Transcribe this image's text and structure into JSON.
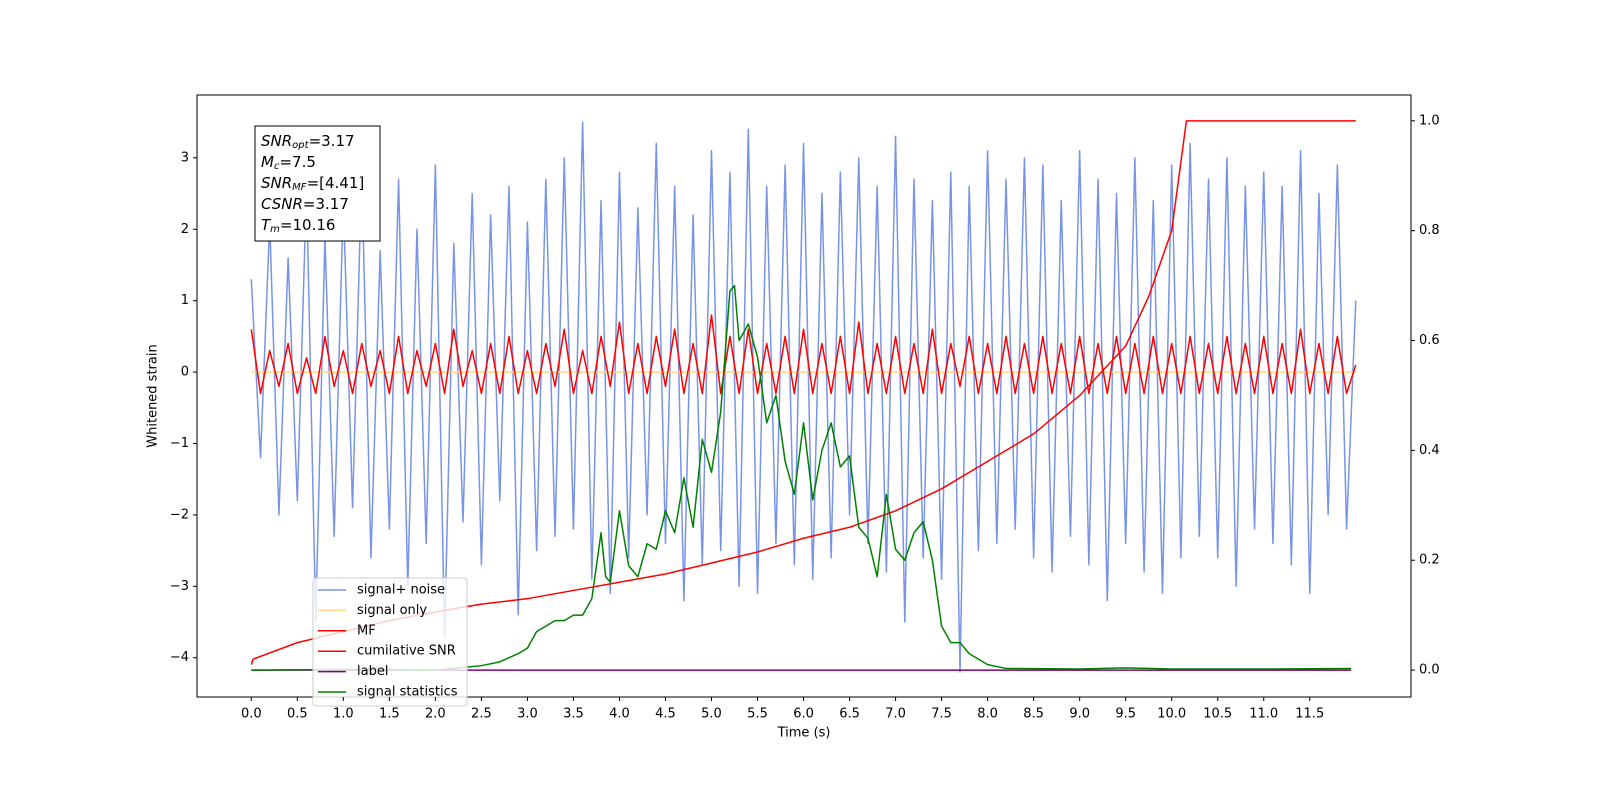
{
  "chart_data": {
    "type": "line",
    "xlabel": "Time (s)",
    "ylabel": "Whitened strain",
    "xlim": [
      -0.59,
      12.6
    ],
    "ylim": [
      -4.55,
      3.88
    ],
    "y2lim": [
      -0.049,
      1.047
    ],
    "xticks": [
      {
        "value": 0,
        "label": "0.0"
      },
      {
        "value": 0.5,
        "label": "0.5"
      },
      {
        "value": 1,
        "label": "1.0"
      },
      {
        "value": 1.5,
        "label": "1.5"
      },
      {
        "value": 2,
        "label": "2.0"
      },
      {
        "value": 2.5,
        "label": "2.5"
      },
      {
        "value": 3,
        "label": "3.0"
      },
      {
        "value": 3.5,
        "label": "3.5"
      },
      {
        "value": 4,
        "label": "4.0"
      },
      {
        "value": 4.5,
        "label": "4.5"
      },
      {
        "value": 5,
        "label": "5.0"
      },
      {
        "value": 5.5,
        "label": "5.5"
      },
      {
        "value": 6,
        "label": "6.0"
      },
      {
        "value": 6.5,
        "label": "6.5"
      },
      {
        "value": 7,
        "label": "7.0"
      },
      {
        "value": 7.5,
        "label": "7.5"
      },
      {
        "value": 8,
        "label": "8.0"
      },
      {
        "value": 8.5,
        "label": "8.5"
      },
      {
        "value": 9,
        "label": "9.0"
      },
      {
        "value": 9.5,
        "label": "9.5"
      },
      {
        "value": 10,
        "label": "10.0"
      },
      {
        "value": 10.5,
        "label": "10.5"
      },
      {
        "value": 11,
        "label": "11.0"
      },
      {
        "value": 11.5,
        "label": "11.5"
      }
    ],
    "yticks": [
      {
        "value": -4,
        "label": "−4"
      },
      {
        "value": -3,
        "label": "−3"
      },
      {
        "value": -2,
        "label": "−2"
      },
      {
        "value": -1,
        "label": "−1"
      },
      0,
      1,
      2,
      3
    ],
    "y2ticks": [
      {
        "value": 0,
        "label": "0.0"
      },
      {
        "value": 0.2,
        "label": "0.2"
      },
      {
        "value": 0.4,
        "label": "0.4"
      },
      {
        "value": 0.6,
        "label": "0.6"
      },
      {
        "value": 0.8,
        "label": "0.8"
      },
      {
        "value": 1,
        "label": "1.0"
      }
    ],
    "legend": "lower left",
    "textbox": [
      {
        "symbol": "SNR",
        "subscript": "opt",
        "text": "=3.17"
      },
      {
        "symbol": "M",
        "subscript": "c",
        "text": "=7.5"
      },
      {
        "symbol": "SNR",
        "subscript": "MF",
        "text": "=[4.41]"
      },
      {
        "symbol": "CSNR",
        "subscript": "",
        "text": "=3.17"
      },
      {
        "symbol": "T",
        "subscript": "m",
        "text": "=10.16"
      }
    ],
    "x": [
      0,
      0.1,
      0.2,
      0.3,
      0.4,
      0.5,
      0.6,
      0.7,
      0.8,
      0.9,
      1,
      1.1,
      1.2,
      1.3,
      1.4,
      1.5,
      1.6,
      1.7,
      1.8,
      1.9,
      2,
      2.1,
      2.2,
      2.3,
      2.4,
      2.5,
      2.6,
      2.7,
      2.8,
      2.9,
      3,
      3.1,
      3.2,
      3.3,
      3.4,
      3.5,
      3.6,
      3.7,
      3.8,
      3.9,
      4,
      4.1,
      4.2,
      4.3,
      4.4,
      4.5,
      4.6,
      4.7,
      4.8,
      4.9,
      5,
      5.1,
      5.2,
      5.3,
      5.4,
      5.5,
      5.6,
      5.7,
      5.8,
      5.9,
      6,
      6.1,
      6.2,
      6.3,
      6.4,
      6.5,
      6.6,
      6.7,
      6.8,
      6.9,
      7,
      7.1,
      7.2,
      7.3,
      7.4,
      7.5,
      7.6,
      7.7,
      7.8,
      7.9,
      8,
      8.1,
      8.2,
      8.3,
      8.4,
      8.5,
      8.6,
      8.7,
      8.8,
      8.9,
      9,
      9.1,
      9.2,
      9.3,
      9.4,
      9.5,
      9.6,
      9.7,
      9.8,
      9.9,
      10,
      10.1,
      10.2,
      10.3,
      10.4,
      10.5,
      10.6,
      10.7,
      10.8,
      10.9,
      11,
      11.1,
      11.2,
      11.3,
      11.4,
      11.5,
      11.6,
      11.7,
      11.8,
      11.9,
      12
    ],
    "series": [
      {
        "name": "signal+ noise",
        "color": "#7994e7",
        "values": [
          1.3,
          -1.2,
          2.1,
          -2.0,
          1.6,
          -1.8,
          2.6,
          -3.5,
          1.9,
          -2.3,
          2.4,
          -1.9,
          2.8,
          -2.6,
          1.7,
          -2.2,
          2.7,
          -3.0,
          2.0,
          -2.4,
          2.9,
          -3.7,
          1.8,
          -2.1,
          2.5,
          -2.7,
          2.2,
          -1.8,
          2.6,
          -3.4,
          2.1,
          -2.5,
          2.7,
          -2.3,
          3.0,
          -2.2,
          3.5,
          -2.9,
          2.4,
          -3.1,
          2.8,
          -2.6,
          2.3,
          -2.0,
          3.2,
          -2.4,
          2.6,
          -3.2,
          2.2,
          -2.7,
          3.1,
          -2.5,
          2.8,
          -3.0,
          3.4,
          -3.1,
          2.6,
          -2.4,
          2.9,
          -2.7,
          3.2,
          -2.9,
          2.5,
          -2.6,
          2.8,
          -2.0,
          3.0,
          -2.4,
          2.6,
          -2.8,
          3.3,
          -3.5,
          2.7,
          -2.6,
          2.4,
          -2.9,
          2.8,
          -4.2,
          2.6,
          -2.5,
          3.1,
          -2.4,
          2.7,
          -2.2,
          3.0,
          -2.6,
          2.9,
          -2.8,
          2.4,
          -2.3,
          3.1,
          -2.7,
          2.7,
          -3.2,
          2.5,
          -2.4,
          3.0,
          -2.8,
          2.4,
          -3.1,
          2.9,
          -2.6,
          3.2,
          -2.3,
          2.7,
          -2.6,
          3.0,
          -3.0,
          2.6,
          -2.2,
          2.8,
          -2.4,
          2.6,
          -2.7,
          3.1,
          -3.1,
          2.5,
          -2.0,
          2.9,
          -2.2,
          1.0
        ]
      },
      {
        "name": "signal only",
        "color": "#ffd68a",
        "x": [
          0,
          12
        ],
        "values": [
          0,
          0
        ]
      },
      {
        "name": "MF",
        "color": "#ff0000",
        "values": [
          0.6,
          -0.3,
          0.3,
          -0.2,
          0.4,
          -0.3,
          0.2,
          -0.3,
          0.5,
          -0.2,
          0.3,
          -0.3,
          0.4,
          -0.2,
          0.3,
          -0.3,
          0.5,
          -0.3,
          0.3,
          -0.2,
          0.4,
          -0.3,
          0.6,
          -0.2,
          0.3,
          -0.3,
          0.4,
          -0.3,
          0.5,
          -0.3,
          0.3,
          -0.3,
          0.4,
          -0.2,
          0.6,
          -0.3,
          0.3,
          -0.3,
          0.5,
          -0.2,
          0.7,
          -0.3,
          0.4,
          -0.3,
          0.5,
          -0.2,
          0.6,
          -0.3,
          0.4,
          -0.3,
          0.8,
          -0.3,
          0.5,
          -0.3,
          0.6,
          -0.3,
          0.4,
          -0.3,
          0.5,
          -0.3,
          0.6,
          -0.3,
          0.4,
          -0.3,
          0.5,
          -0.3,
          0.7,
          -0.3,
          0.4,
          -0.3,
          0.5,
          -0.3,
          0.4,
          -0.3,
          0.6,
          -0.3,
          0.4,
          -0.2,
          0.5,
          -0.3,
          0.4,
          -0.3,
          0.5,
          -0.3,
          0.4,
          -0.3,
          0.5,
          -0.3,
          0.4,
          -0.3,
          0.5,
          -0.3,
          0.4,
          -0.3,
          0.5,
          -0.3,
          0.4,
          -0.3,
          0.5,
          -0.3,
          0.4,
          -0.3,
          0.5,
          -0.3,
          0.4,
          -0.3,
          0.5,
          -0.3,
          0.4,
          -0.3,
          0.5,
          -0.3,
          0.4,
          -0.3,
          0.6,
          -0.3,
          0.4,
          -0.3,
          0.5,
          -0.3,
          0.1
        ]
      },
      {
        "name": "cumilative SNR",
        "color": "#ff0000",
        "axis": "y2",
        "x": [
          0,
          0.02,
          0.5,
          1,
          1.5,
          2,
          2.5,
          3,
          3.5,
          4,
          4.5,
          5,
          5.5,
          6,
          6.5,
          7,
          7.5,
          8,
          8.5,
          9,
          9.5,
          9.75,
          10,
          10.16,
          12
        ],
        "values": [
          0.01,
          0.02,
          0.05,
          0.07,
          0.09,
          0.106,
          0.12,
          0.13,
          0.145,
          0.16,
          0.175,
          0.195,
          0.215,
          0.24,
          0.26,
          0.29,
          0.33,
          0.38,
          0.43,
          0.5,
          0.59,
          0.68,
          0.8,
          1,
          1
        ]
      },
      {
        "name": "label",
        "color": "#800080",
        "axis": "y2",
        "x": [
          0,
          11.95
        ],
        "values": [
          0,
          0
        ]
      },
      {
        "name": "signal statistics",
        "color": "#008000",
        "axis": "y2",
        "x": [
          0,
          1,
          2,
          2.5,
          2.7,
          2.9,
          3,
          3.1,
          3.2,
          3.3,
          3.4,
          3.5,
          3.6,
          3.7,
          3.8,
          3.85,
          3.9,
          4,
          4.1,
          4.2,
          4.3,
          4.4,
          4.5,
          4.6,
          4.7,
          4.8,
          4.9,
          5,
          5.1,
          5.2,
          5.25,
          5.3,
          5.4,
          5.5,
          5.6,
          5.7,
          5.8,
          5.9,
          6,
          6.1,
          6.2,
          6.3,
          6.4,
          6.5,
          6.6,
          6.7,
          6.8,
          6.9,
          7,
          7.1,
          7.2,
          7.3,
          7.4,
          7.5,
          7.6,
          7.7,
          7.8,
          7.9,
          8,
          8.2,
          9,
          9.5,
          10,
          11,
          11.95
        ],
        "values": [
          0,
          0.001,
          0,
          0.008,
          0.015,
          0.03,
          0.04,
          0.07,
          0.08,
          0.09,
          0.09,
          0.1,
          0.1,
          0.13,
          0.25,
          0.17,
          0.16,
          0.29,
          0.19,
          0.17,
          0.23,
          0.22,
          0.29,
          0.25,
          0.35,
          0.26,
          0.42,
          0.36,
          0.47,
          0.69,
          0.7,
          0.6,
          0.63,
          0.57,
          0.45,
          0.5,
          0.38,
          0.32,
          0.45,
          0.31,
          0.4,
          0.45,
          0.37,
          0.39,
          0.26,
          0.24,
          0.17,
          0.32,
          0.22,
          0.2,
          0.25,
          0.27,
          0.2,
          0.08,
          0.05,
          0.05,
          0.03,
          0.02,
          0.01,
          0.003,
          0.002,
          0.004,
          0.002,
          0.002,
          0.003
        ]
      }
    ]
  }
}
